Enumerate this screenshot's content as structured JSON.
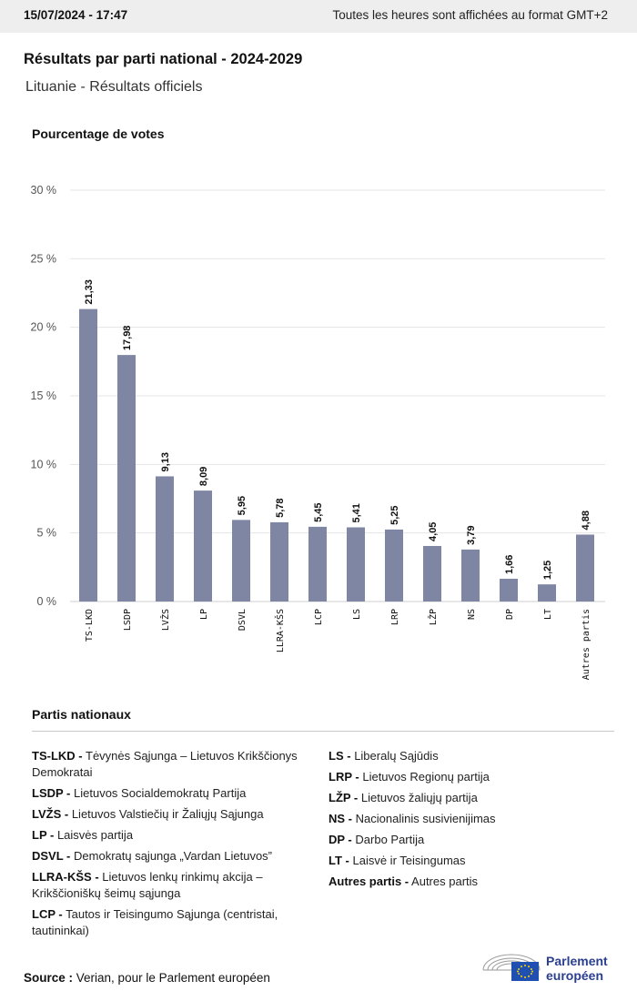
{
  "header": {
    "datetime": "15/07/2024 - 17:47",
    "timezone_note": "Toutes les heures sont affichées au format GMT+2"
  },
  "title": "Résultats par parti national - 2024-2029",
  "subtitle": "Lituanie - Résultats officiels",
  "colors": {
    "bar": "#7f86a4",
    "grid": "#e4e4e4",
    "header_bg": "#eeeeee",
    "logo_blue": "#2a3f8f",
    "eu_flag": "#1f4fb0",
    "eu_stars": "#ffd400"
  },
  "chart_data": {
    "type": "bar",
    "ylabel": "Pourcentage de votes",
    "ylim": [
      0,
      30
    ],
    "yticks": [
      0,
      5,
      10,
      15,
      20,
      25,
      30
    ],
    "ytick_labels": [
      "0 %",
      "5 %",
      "10 %",
      "15 %",
      "20 %",
      "25 %",
      "30 %"
    ],
    "grid": true,
    "categories": [
      "TS-LKD",
      "LSDP",
      "LVŽS",
      "LP",
      "DSVL",
      "LLRA-KŠS",
      "LCP",
      "LS",
      "LRP",
      "LŽP",
      "NS",
      "DP",
      "LT",
      "Autres partis"
    ],
    "values": [
      21.33,
      17.98,
      9.13,
      8.09,
      5.95,
      5.78,
      5.45,
      5.41,
      5.25,
      4.05,
      3.79,
      1.66,
      1.25,
      4.88
    ],
    "value_labels": [
      "21,33",
      "17,98",
      "9,13",
      "8,09",
      "5,95",
      "5,78",
      "5,45",
      "5,41",
      "5,25",
      "4,05",
      "3,79",
      "1,66",
      "1,25",
      "4,88"
    ]
  },
  "legend": {
    "title": "Partis nationaux",
    "left": [
      {
        "abbr": "TS-LKD -",
        "name": "Tėvynės Sąjunga – Lietuvos Krikščionys Demokratai"
      },
      {
        "abbr": "LSDP -",
        "name": "Lietuvos Socialdemokratų Partija"
      },
      {
        "abbr": "LVŽS -",
        "name": "Lietuvos Valstiečių ir Žaliųjų Sąjunga"
      },
      {
        "abbr": "LP -",
        "name": "Laisvės partija"
      },
      {
        "abbr": "DSVL -",
        "name": "Demokratų sąjunga „Vardan Lietuvos”"
      },
      {
        "abbr": "LLRA-KŠS -",
        "name": "Lietuvos lenkų rinkimų akcija – Krikščioniškų šeimų sąjunga"
      },
      {
        "abbr": "LCP -",
        "name": "Tautos ir Teisingumo Sąjunga (centristai, tautininkai)"
      }
    ],
    "right": [
      {
        "abbr": "LS -",
        "name": "Liberalų Sąjūdis"
      },
      {
        "abbr": "LRP -",
        "name": "Lietuvos Regionų partija"
      },
      {
        "abbr": "LŽP -",
        "name": "Lietuvos žaliųjų partija"
      },
      {
        "abbr": "NS -",
        "name": "Nacionalinis susivienijimas"
      },
      {
        "abbr": "DP -",
        "name": "Darbo Partija"
      },
      {
        "abbr": "LT -",
        "name": "Laisvė ir Teisingumas"
      },
      {
        "abbr": "Autres partis -",
        "name": "Autres partis"
      }
    ]
  },
  "source": {
    "label": "Source :",
    "text": "Verian, pour le Parlement européen"
  },
  "logo": {
    "line1": "Parlement",
    "line2": "européen",
    "icon": "european-parliament-hemicycle-logo"
  }
}
